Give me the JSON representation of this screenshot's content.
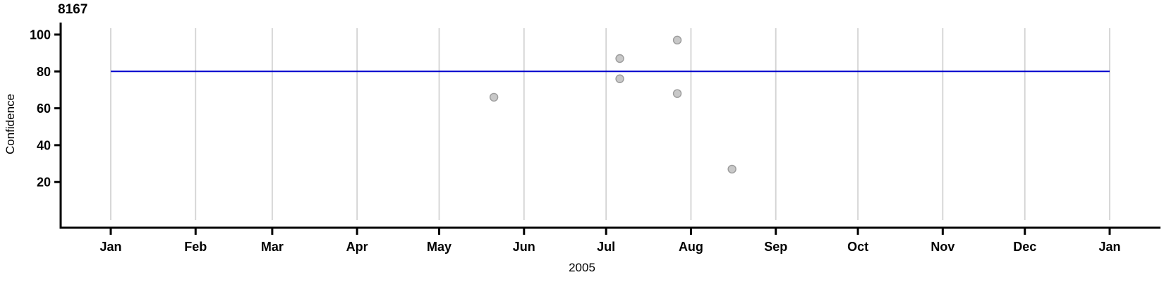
{
  "chart_data": {
    "type": "scatter",
    "title": "8167",
    "ylabel": "Confidence",
    "xlabel": "2005",
    "x_axis": {
      "unit": "months",
      "tick_labels": [
        "Jan",
        "Feb",
        "Mar",
        "Apr",
        "May",
        "Jun",
        "Jul",
        "Aug",
        "Sep",
        "Oct",
        "Nov",
        "Dec",
        "Jan"
      ],
      "tick_days": [
        0,
        31,
        59,
        90,
        120,
        151,
        181,
        212,
        243,
        273,
        304,
        334,
        365
      ],
      "range_days": [
        0,
        365
      ],
      "grid": true
    },
    "y_axis": {
      "tick_values": [
        20,
        40,
        60,
        80,
        100
      ],
      "range": [
        0,
        103
      ],
      "grid": false
    },
    "reference_line": {
      "value": 80
    },
    "points": [
      {
        "date": "2005-05-21",
        "day": 140,
        "value": 66
      },
      {
        "date": "2005-07-06",
        "day": 186,
        "value": 87
      },
      {
        "date": "2005-07-06",
        "day": 186,
        "value": 76
      },
      {
        "date": "2005-07-27",
        "day": 207,
        "value": 97
      },
      {
        "date": "2005-07-27",
        "day": 207,
        "value": 68
      },
      {
        "date": "2005-08-16",
        "day": 227,
        "value": 27
      }
    ],
    "colors": {
      "reference_line": "#0000cd",
      "point_fill": "#c8c8c8",
      "point_stroke": "#9c9c9c",
      "grid": "#d3d3d3",
      "axis": "#000000",
      "text": "#000000"
    },
    "legend": null
  }
}
